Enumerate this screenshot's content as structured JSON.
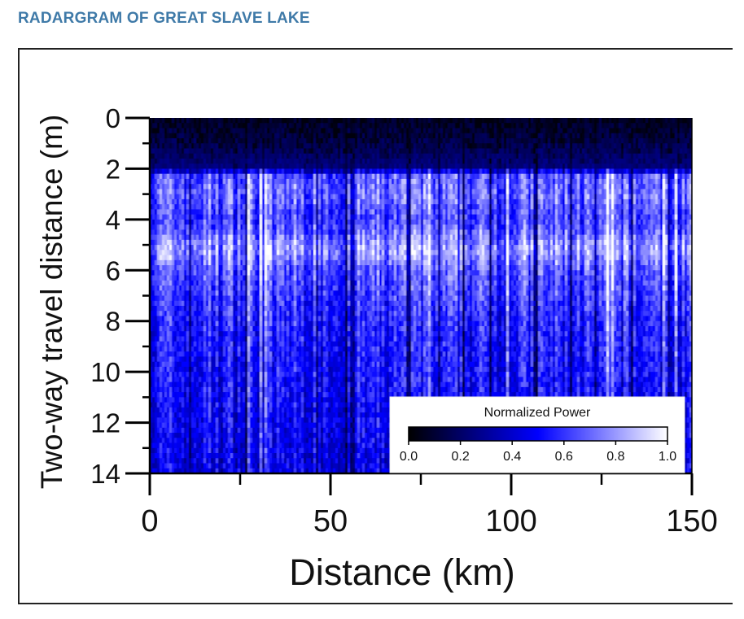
{
  "header": {
    "title": "RADARGRAM OF GREAT SLAVE LAKE"
  },
  "colors": {
    "title": "#3f7aa8",
    "plot_low": "#000010",
    "plot_mid": "#0000ff",
    "plot_high": "#ffffff"
  },
  "chart_data": {
    "type": "heatmap",
    "title": "",
    "xlabel": "Distance (km)",
    "ylabel": "Two-way travel distance (m)",
    "xlim": [
      0,
      150
    ],
    "ylim": [
      0,
      14
    ],
    "y_inverted": true,
    "x_ticks": [
      "0",
      "50",
      "100",
      "150"
    ],
    "y_ticks": [
      "0",
      "2",
      "4",
      "6",
      "8",
      "10",
      "12",
      "14"
    ],
    "colorbar": {
      "label": "Normalized Power",
      "range": [
        0.0,
        1.0
      ],
      "ticks": [
        "0.0",
        "0.2",
        "0.4",
        "0.6",
        "0.8",
        "1.0"
      ],
      "colormap": [
        "#000000",
        "#0000ff",
        "#ffffff"
      ]
    },
    "profile": [
      {
        "depth_m": 0.0,
        "power": 0.05
      },
      {
        "depth_m": 1.0,
        "power": 0.12
      },
      {
        "depth_m": 2.0,
        "power": 0.3
      },
      {
        "depth_m": 2.3,
        "power": 0.65
      },
      {
        "depth_m": 3.0,
        "power": 0.7
      },
      {
        "depth_m": 4.0,
        "power": 0.6
      },
      {
        "depth_m": 5.2,
        "power": 0.8
      },
      {
        "depth_m": 6.0,
        "power": 0.65
      },
      {
        "depth_m": 8.0,
        "power": 0.55
      },
      {
        "depth_m": 11.0,
        "power": 0.5
      },
      {
        "depth_m": 14.0,
        "power": 0.45
      }
    ]
  }
}
